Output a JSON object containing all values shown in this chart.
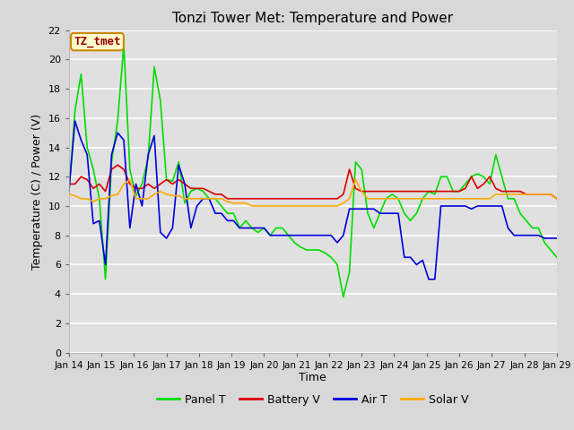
{
  "title": "Tonzi Tower Met: Temperature and Power",
  "xlabel": "Time",
  "ylabel": "Temperature (C) / Power (V)",
  "ylim": [
    0,
    22
  ],
  "fig_bg_color": "#d8d8d8",
  "plot_bg_color": "#e0e0e0",
  "grid_color": "#ffffff",
  "legend_label": "TZ_tmet",
  "x_tick_labels": [
    "Jan 14",
    "Jan 15",
    "Jan 16",
    "Jan 17",
    "Jan 18",
    "Jan 19",
    "Jan 20",
    "Jan 21",
    "Jan 22",
    "Jan 23",
    "Jan 24",
    "Jan 25",
    "Jan 26",
    "Jan 27",
    "Jan 28",
    "Jan 29"
  ],
  "series": {
    "panel_t": {
      "label": "Panel T",
      "color": "#00dd00",
      "lw": 1.2,
      "values": [
        10.9,
        16.5,
        19.0,
        14.0,
        12.5,
        10.5,
        5.0,
        13.0,
        15.8,
        21.0,
        12.5,
        10.7,
        11.5,
        13.3,
        19.5,
        17.2,
        11.8,
        11.7,
        13.0,
        10.2,
        11.0,
        11.2,
        11.0,
        10.5,
        10.5,
        10.0,
        9.5,
        9.5,
        8.5,
        9.0,
        8.5,
        8.2,
        8.5,
        8.0,
        8.5,
        8.5,
        8.0,
        7.5,
        7.2,
        7.0,
        7.0,
        7.0,
        6.8,
        6.5,
        6.0,
        3.8,
        5.5,
        13.0,
        12.5,
        9.5,
        8.5,
        9.5,
        10.5,
        10.8,
        10.5,
        9.5,
        9.0,
        9.5,
        10.5,
        11.0,
        10.8,
        12.0,
        12.0,
        11.0,
        11.0,
        11.5,
        12.0,
        12.2,
        12.0,
        11.5,
        13.5,
        12.0,
        10.5,
        10.5,
        9.5,
        9.0,
        8.5,
        8.5,
        7.5,
        7.0,
        6.5
      ]
    },
    "battery_v": {
      "label": "Battery V",
      "color": "#dd0000",
      "lw": 1.2,
      "values": [
        11.5,
        11.5,
        12.0,
        11.8,
        11.2,
        11.5,
        11.0,
        12.5,
        12.8,
        12.5,
        11.5,
        11.2,
        11.2,
        11.5,
        11.2,
        11.5,
        11.8,
        11.5,
        11.8,
        11.5,
        11.2,
        11.2,
        11.2,
        11.0,
        10.8,
        10.8,
        10.5,
        10.5,
        10.5,
        10.5,
        10.5,
        10.5,
        10.5,
        10.5,
        10.5,
        10.5,
        10.5,
        10.5,
        10.5,
        10.5,
        10.5,
        10.5,
        10.5,
        10.5,
        10.5,
        10.8,
        12.5,
        11.2,
        11.0,
        11.0,
        11.0,
        11.0,
        11.0,
        11.0,
        11.0,
        11.0,
        11.0,
        11.0,
        11.0,
        11.0,
        11.0,
        11.0,
        11.0,
        11.0,
        11.0,
        11.2,
        12.0,
        11.2,
        11.5,
        12.0,
        11.2,
        11.0,
        11.0,
        11.0,
        11.0,
        10.8,
        10.8,
        10.8,
        10.8,
        10.8,
        10.5
      ]
    },
    "air_t": {
      "label": "Air T",
      "color": "#0000dd",
      "lw": 1.2,
      "values": [
        11.0,
        15.8,
        14.5,
        13.5,
        8.8,
        9.0,
        6.0,
        13.5,
        15.0,
        14.5,
        8.5,
        11.5,
        10.0,
        13.5,
        14.8,
        8.2,
        7.8,
        8.5,
        12.8,
        11.5,
        8.5,
        10.0,
        10.5,
        10.5,
        9.5,
        9.5,
        9.0,
        9.0,
        8.5,
        8.5,
        8.5,
        8.5,
        8.5,
        8.0,
        8.0,
        8.0,
        8.0,
        8.0,
        8.0,
        8.0,
        8.0,
        8.0,
        8.0,
        8.0,
        7.5,
        8.0,
        9.8,
        9.8,
        9.8,
        9.8,
        9.8,
        9.5,
        9.5,
        9.5,
        9.5,
        6.5,
        6.5,
        6.0,
        6.3,
        5.0,
        5.0,
        10.0,
        10.0,
        10.0,
        10.0,
        10.0,
        9.8,
        10.0,
        10.0,
        10.0,
        10.0,
        10.0,
        8.5,
        8.0,
        8.0,
        8.0,
        8.0,
        8.0,
        7.8,
        7.8,
        7.8
      ]
    },
    "solar_v": {
      "label": "Solar V",
      "color": "#ffaa00",
      "lw": 1.2,
      "values": [
        10.8,
        10.7,
        10.5,
        10.5,
        10.3,
        10.5,
        10.5,
        10.7,
        10.8,
        11.5,
        11.8,
        10.5,
        10.5,
        10.5,
        10.8,
        11.0,
        10.8,
        10.7,
        10.7,
        10.5,
        10.5,
        10.5,
        10.5,
        10.5,
        10.5,
        10.5,
        10.3,
        10.2,
        10.2,
        10.2,
        10.0,
        10.0,
        10.0,
        10.0,
        10.0,
        10.0,
        10.0,
        10.0,
        10.0,
        10.0,
        10.0,
        10.0,
        10.0,
        10.0,
        10.0,
        10.2,
        10.5,
        11.8,
        11.0,
        10.5,
        10.5,
        10.5,
        10.5,
        10.5,
        10.5,
        10.5,
        10.5,
        10.5,
        10.5,
        10.5,
        10.5,
        10.5,
        10.5,
        10.5,
        10.5,
        10.5,
        10.5,
        10.5,
        10.5,
        10.5,
        10.8,
        10.8,
        10.8,
        10.8,
        10.8,
        10.8,
        10.8,
        10.8,
        10.8,
        10.8,
        10.5
      ]
    }
  }
}
